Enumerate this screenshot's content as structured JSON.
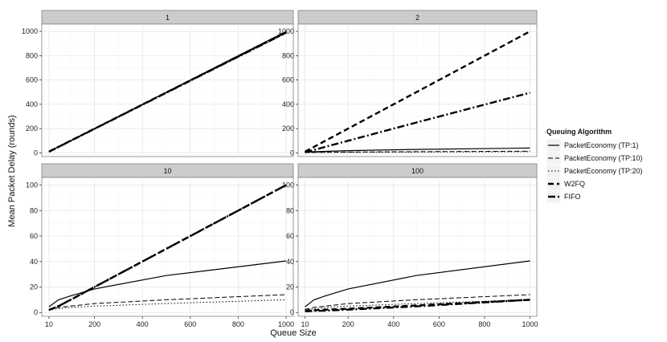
{
  "chart_data": {
    "type": "line",
    "xlabel": "Queue Size",
    "ylabel": "Mean Packet Delay (rounds)",
    "legend_title": "Queuing Algorithm",
    "legend_position": "right",
    "grid": true,
    "x": [
      10,
      50,
      100,
      200,
      500,
      1000
    ],
    "x_ticks": [
      10,
      200,
      400,
      600,
      800,
      1000
    ],
    "series_styles": [
      {
        "name": "PacketEconomy (TP:1)",
        "dash": "",
        "width": 1.2
      },
      {
        "name": "PacketEconomy (TP:10)",
        "dash": "6,3",
        "width": 1.0
      },
      {
        "name": "PacketEconomy (TP:20)",
        "dash": "1.5,2.5",
        "width": 1.0
      },
      {
        "name": "W2FQ",
        "dash": "7,4",
        "width": 2.4
      },
      {
        "name": "FIFO",
        "dash": "9,3,2,3",
        "width": 2.4
      }
    ],
    "panels": [
      {
        "strip": "1",
        "ylim": [
          -30,
          1060
        ],
        "y_ticks": [
          0,
          200,
          400,
          600,
          800,
          1000
        ],
        "series": [
          {
            "name": "PacketEconomy (TP:1)",
            "values": [
              10,
              50,
              100,
              200,
              500,
              1000
            ]
          },
          {
            "name": "PacketEconomy (TP:10)",
            "values": [
              10,
              50,
              99,
              198,
              495,
              990
            ]
          },
          {
            "name": "PacketEconomy (TP:20)",
            "values": [
              10,
              49,
              98,
              196,
              492,
              985
            ]
          },
          {
            "name": "W2FQ",
            "values": [
              10,
              50,
              100,
              199,
              497,
              995
            ]
          },
          {
            "name": "FIFO",
            "values": [
              10,
              50,
              99,
              198,
              495,
              990
            ]
          }
        ]
      },
      {
        "strip": "2",
        "ylim": [
          -30,
          1060
        ],
        "y_ticks": [
          0,
          200,
          400,
          600,
          800,
          1000
        ],
        "series": [
          {
            "name": "PacketEconomy (TP:1)",
            "values": [
              5,
              10,
              13,
              19,
              29,
              40
            ]
          },
          {
            "name": "PacketEconomy (TP:10)",
            "values": [
              3,
              4,
              5,
              7,
              10,
              14
            ]
          },
          {
            "name": "PacketEconomy (TP:20)",
            "values": [
              2,
              3,
              4,
              5,
              7,
              10
            ]
          },
          {
            "name": "W2FQ",
            "values": [
              10,
              50,
              100,
              200,
              500,
              1000
            ]
          },
          {
            "name": "FIFO",
            "values": [
              5,
              25,
              50,
              100,
              250,
              495
            ]
          }
        ]
      },
      {
        "strip": "10",
        "ylim": [
          -3,
          106
        ],
        "y_ticks": [
          0,
          20,
          40,
          60,
          80,
          100
        ],
        "series": [
          {
            "name": "PacketEconomy (TP:1)",
            "values": [
              4.5,
              10,
              13,
              18.5,
              29,
              40.5
            ]
          },
          {
            "name": "PacketEconomy (TP:10)",
            "values": [
              2.5,
              4,
              5,
              7,
              10,
              14
            ]
          },
          {
            "name": "PacketEconomy (TP:20)",
            "values": [
              2,
              3,
              4,
              5,
              7,
              10
            ]
          },
          {
            "name": "W2FQ",
            "values": [
              2,
              5,
              10,
              20,
              50,
              100
            ]
          },
          {
            "name": "FIFO",
            "values": [
              2,
              5,
              10,
              20,
              50,
              100
            ]
          }
        ]
      },
      {
        "strip": "100",
        "ylim": [
          -3,
          106
        ],
        "y_ticks": [
          0,
          20,
          40,
          60,
          80,
          100
        ],
        "series": [
          {
            "name": "PacketEconomy (TP:1)",
            "values": [
              4.5,
              10,
              13,
              18.5,
              29,
              40.5
            ]
          },
          {
            "name": "PacketEconomy (TP:10)",
            "values": [
              2.5,
              4,
              5,
              7,
              10,
              14
            ]
          },
          {
            "name": "PacketEconomy (TP:20)",
            "values": [
              2,
              3,
              4,
              5,
              7,
              10
            ]
          },
          {
            "name": "W2FQ",
            "values": [
              1.5,
              1.8,
              2.2,
              3,
              5.5,
              10
            ]
          },
          {
            "name": "FIFO",
            "values": [
              1,
              1.2,
              1.5,
              2.2,
              4.8,
              10
            ]
          }
        ]
      }
    ]
  }
}
